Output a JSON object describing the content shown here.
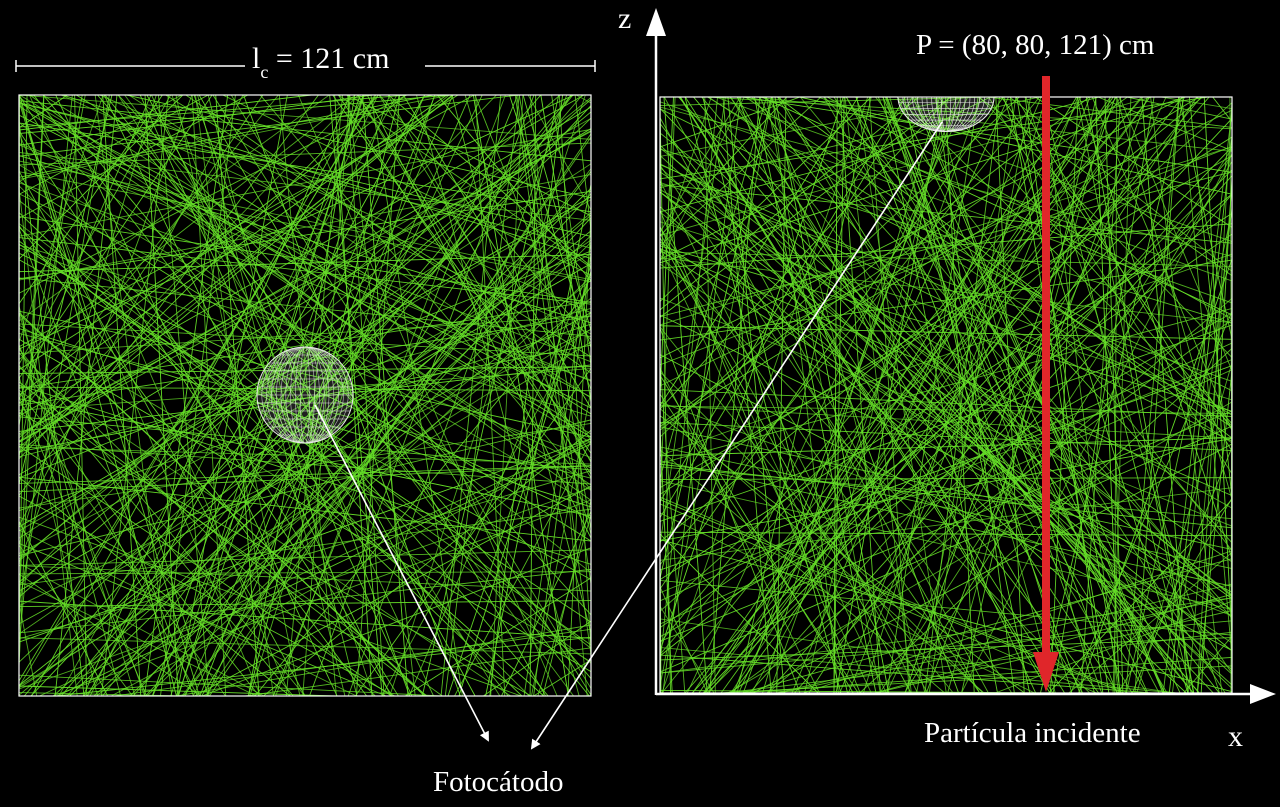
{
  "labels": {
    "length_prefix": "l",
    "length_sub": "c",
    "length_value": " = 121 cm",
    "point": "P = (80, 80, 121) cm",
    "axis_z": "z",
    "axis_x": "x",
    "incident": "Partícula incidente",
    "photocathode": "Fotocátodo"
  },
  "colors": {
    "background": "#000000",
    "rays": "#66e028",
    "frame": "#ffffff",
    "mesh": "#e8e8e8",
    "particle": "#e0262a"
  },
  "icons": {
    "photocathode_left": "wireframe-sphere-icon",
    "photocathode_right": "wireframe-hemisphere-icon"
  }
}
